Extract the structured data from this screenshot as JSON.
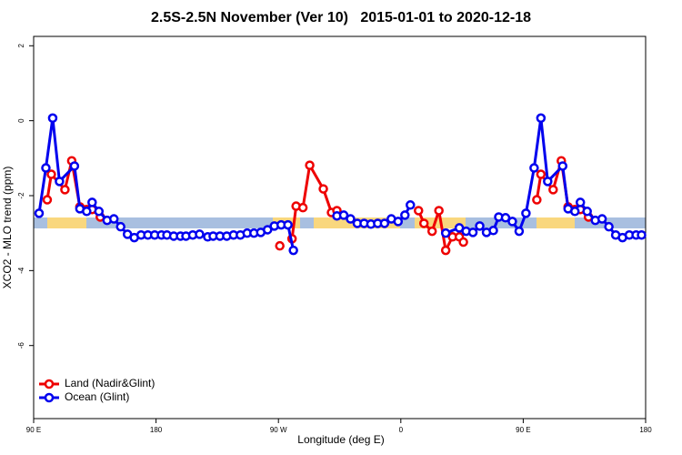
{
  "chart_data": {
    "type": "line",
    "title": "2.5S-2.5N November (Ver 10)   2015-01-01 to 2020-12-18",
    "xlabel": "Longitude (deg E)",
    "ylabel": "XCO2 - MLO trend (ppm)",
    "xlim": [
      90,
      540
    ],
    "xticks": [
      {
        "value": 90,
        "label": "90 E"
      },
      180,
      {
        "value": 270,
        "label": "90 W"
      },
      {
        "value": 360,
        "label": "0"
      },
      {
        "value": 450,
        "label": "90 E"
      },
      {
        "value": 540,
        "label": "180"
      }
    ],
    "ylim": [
      -7.95,
      2.25
    ],
    "yticks": [
      2,
      0,
      -2,
      -4,
      -6
    ],
    "legend": "bottom-left",
    "series": [
      {
        "name": "Land (Nadir&Glint)",
        "color": "#ee0000",
        "x": [
          100,
          103,
          113,
          118,
          124,
          129,
          133,
          139,
          null,
          271,
          null,
          280,
          283,
          288,
          293,
          303,
          309,
          313,
          null,
          373,
          377,
          383,
          388,
          393,
          398,
          403,
          406,
          null,
          460,
          463,
          472,
          478,
          483,
          488,
          492,
          498
        ],
        "values": [
          -2.11,
          -1.43,
          -1.84,
          -1.07,
          -2.3,
          -2.37,
          -2.37,
          -2.57,
          null,
          -3.34,
          null,
          -3.15,
          -2.28,
          -2.32,
          -1.19,
          -1.82,
          -2.45,
          -2.4,
          null,
          -2.4,
          -2.74,
          -2.95,
          -2.4,
          -3.46,
          -3.1,
          -3.1,
          -3.24,
          null,
          -2.11,
          -1.43,
          -1.84,
          -1.07,
          -2.3,
          -2.37,
          -2.37,
          -2.57
        ]
      },
      {
        "name": "Ocean (Glint)",
        "color": "#0000ee",
        "x": [
          94,
          99,
          104,
          109,
          120,
          124,
          129,
          133,
          138,
          144,
          149,
          154,
          159,
          164,
          169,
          174,
          179,
          184,
          188,
          193,
          198,
          202,
          207,
          212,
          218,
          222,
          227,
          232,
          237,
          242,
          247,
          252,
          257,
          262,
          267,
          272,
          277,
          281,
          null,
          313,
          318,
          323,
          328,
          333,
          338,
          343,
          348,
          353,
          358,
          363,
          367,
          null,
          393,
          403,
          408,
          413,
          418,
          423,
          428,
          432,
          437,
          442,
          447,
          452,
          458,
          463,
          468,
          479,
          483,
          488,
          492,
          497,
          503,
          508,
          513,
          518,
          523,
          528,
          533,
          537
        ],
        "values": [
          -2.47,
          -1.26,
          0.07,
          -1.62,
          -1.21,
          -2.35,
          -2.42,
          -2.18,
          -2.42,
          -2.66,
          -2.62,
          -2.83,
          -3.03,
          -3.12,
          -3.05,
          -3.05,
          -3.05,
          -3.05,
          -3.05,
          -3.08,
          -3.08,
          -3.08,
          -3.05,
          -3.03,
          -3.1,
          -3.08,
          -3.08,
          -3.08,
          -3.05,
          -3.05,
          -3.0,
          -3.0,
          -2.98,
          -2.91,
          -2.81,
          -2.78,
          -2.78,
          -3.46,
          null,
          -2.54,
          -2.52,
          -2.62,
          -2.74,
          -2.74,
          -2.76,
          -2.74,
          -2.74,
          -2.62,
          -2.69,
          -2.52,
          -2.25,
          null,
          -3.0,
          -2.86,
          -2.95,
          -2.98,
          -2.81,
          -2.98,
          -2.93,
          -2.57,
          -2.59,
          -2.69,
          -2.95,
          -2.47,
          -1.26,
          0.07,
          -1.62,
          -1.21,
          -2.35,
          -2.42,
          -2.18,
          -2.42,
          -2.66,
          -2.62,
          -2.83,
          -3.05,
          -3.12,
          -3.05,
          -3.05,
          -3.05
        ]
      }
    ]
  }
}
